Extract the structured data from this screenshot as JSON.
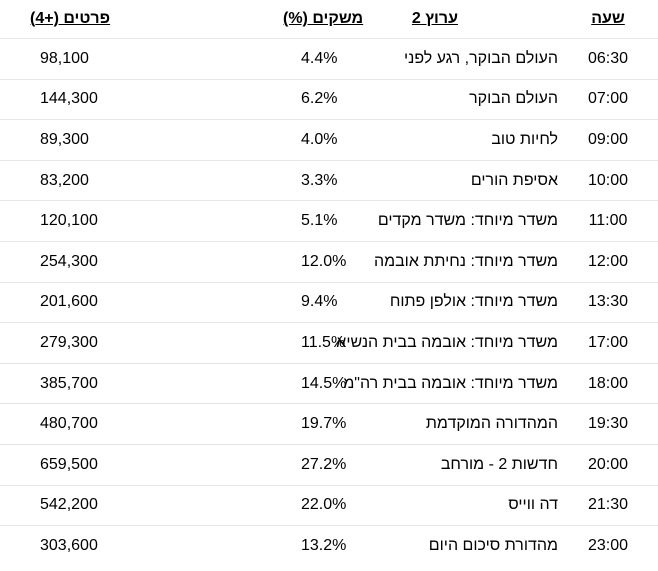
{
  "header": {
    "time": "שעה",
    "show": "ערוץ 2",
    "share": "משקים (%)",
    "viewers": "פרטים (+4)"
  },
  "rows": [
    {
      "time": "06:30",
      "show": "העולם הבוקר, רגע לפני",
      "share": "4.4%",
      "viewers": "98,100"
    },
    {
      "time": "07:00",
      "show": "העולם הבוקר",
      "share": "6.2%",
      "viewers": "144,300"
    },
    {
      "time": "09:00",
      "show": "לחיות טוב",
      "share": "4.0%",
      "viewers": "89,300"
    },
    {
      "time": "10:00",
      "show": "אסיפת הורים",
      "share": "3.3%",
      "viewers": "83,200"
    },
    {
      "time": "11:00",
      "show": "משדר מיוחד: משדר מקדים",
      "share": "5.1%",
      "viewers": "120,100"
    },
    {
      "time": "12:00",
      "show": "משדר מיוחד: נחיתת אובמה",
      "share": "12.0%",
      "viewers": "254,300"
    },
    {
      "time": "13:30",
      "show": "משדר מיוחד: אולפן פתוח",
      "share": "9.4%",
      "viewers": "201,600"
    },
    {
      "time": "17:00",
      "show": "משדר מיוחד: אובמה בבית הנשיא",
      "share": "11.5%",
      "viewers": "279,300"
    },
    {
      "time": "18:00",
      "show": "משדר מיוחד: אובמה בבית רה\"מ",
      "share": "14.5%",
      "viewers": "385,700"
    },
    {
      "time": "19:30",
      "show": "המהדורה המוקדמת",
      "share": "19.7%",
      "viewers": "480,700"
    },
    {
      "time": "20:00",
      "show": "חדשות 2 - מורחב",
      "share": "27.2%",
      "viewers": "659,500"
    },
    {
      "time": "21:30",
      "show": "דה ווייס",
      "share": "22.0%",
      "viewers": "542,200"
    },
    {
      "time": "23:00",
      "show": "מהדורת סיכום היום",
      "share": "13.2%",
      "viewers": "303,600"
    }
  ]
}
